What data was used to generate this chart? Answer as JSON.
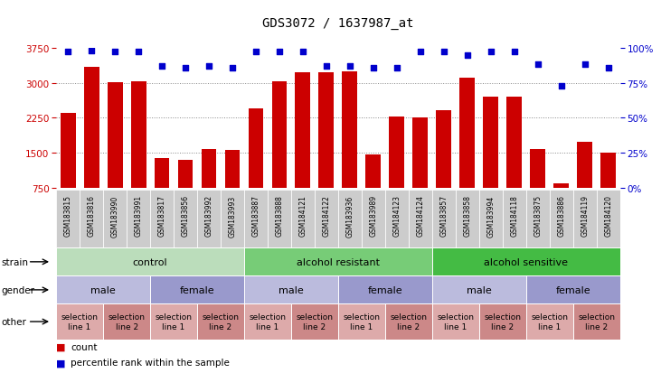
{
  "title": "GDS3072 / 1637987_at",
  "samples": [
    "GSM183815",
    "GSM183816",
    "GSM183990",
    "GSM183991",
    "GSM183817",
    "GSM183856",
    "GSM183992",
    "GSM183993",
    "GSM183887",
    "GSM183888",
    "GSM184121",
    "GSM184122",
    "GSM183936",
    "GSM183989",
    "GSM184123",
    "GSM184124",
    "GSM183857",
    "GSM183858",
    "GSM183994",
    "GSM184118",
    "GSM183875",
    "GSM183886",
    "GSM184119",
    "GSM184120"
  ],
  "counts": [
    2350,
    3350,
    3020,
    3040,
    1380,
    1360,
    1580,
    1560,
    2450,
    3040,
    3220,
    3220,
    3250,
    1470,
    2280,
    2250,
    2420,
    3100,
    2700,
    2700,
    1580,
    850,
    1740,
    1510
  ],
  "percentiles": [
    97,
    98,
    97,
    97,
    87,
    86,
    87,
    86,
    97,
    97,
    97,
    87,
    87,
    86,
    86,
    97,
    97,
    95,
    97,
    97,
    88,
    73,
    88,
    86
  ],
  "ylim_left": [
    750,
    3750
  ],
  "ylim_right": [
    0,
    100
  ],
  "yticks_left": [
    750,
    1500,
    2250,
    3000,
    3750
  ],
  "yticks_right": [
    0,
    25,
    50,
    75,
    100
  ],
  "bar_color": "#cc0000",
  "dot_color": "#0000cc",
  "grid_color": "#888888",
  "tick_bg_color": "#cccccc",
  "strain_groups": [
    {
      "label": "control",
      "start": 0,
      "end": 7,
      "color": "#bbddbb"
    },
    {
      "label": "alcohol resistant",
      "start": 8,
      "end": 15,
      "color": "#77cc77"
    },
    {
      "label": "alcohol sensitive",
      "start": 16,
      "end": 23,
      "color": "#44bb44"
    }
  ],
  "gender_groups": [
    {
      "label": "male",
      "start": 0,
      "end": 3,
      "color": "#bbbbdd"
    },
    {
      "label": "female",
      "start": 4,
      "end": 7,
      "color": "#9999cc"
    },
    {
      "label": "male",
      "start": 8,
      "end": 11,
      "color": "#bbbbdd"
    },
    {
      "label": "female",
      "start": 12,
      "end": 15,
      "color": "#9999cc"
    },
    {
      "label": "male",
      "start": 16,
      "end": 19,
      "color": "#bbbbdd"
    },
    {
      "label": "female",
      "start": 20,
      "end": 23,
      "color": "#9999cc"
    }
  ],
  "other_groups": [
    {
      "label": "selection\nline 1",
      "start": 0,
      "end": 1,
      "color": "#ddaaaa"
    },
    {
      "label": "selection\nline 2",
      "start": 2,
      "end": 3,
      "color": "#cc8888"
    },
    {
      "label": "selection\nline 1",
      "start": 4,
      "end": 5,
      "color": "#ddaaaa"
    },
    {
      "label": "selection\nline 2",
      "start": 6,
      "end": 7,
      "color": "#cc8888"
    },
    {
      "label": "selection\nline 1",
      "start": 8,
      "end": 9,
      "color": "#ddaaaa"
    },
    {
      "label": "selection\nline 2",
      "start": 10,
      "end": 11,
      "color": "#cc8888"
    },
    {
      "label": "selection\nline 1",
      "start": 12,
      "end": 13,
      "color": "#ddaaaa"
    },
    {
      "label": "selection\nline 2",
      "start": 14,
      "end": 15,
      "color": "#cc8888"
    },
    {
      "label": "selection\nline 1",
      "start": 16,
      "end": 17,
      "color": "#ddaaaa"
    },
    {
      "label": "selection\nline 2",
      "start": 18,
      "end": 19,
      "color": "#cc8888"
    },
    {
      "label": "selection\nline 1",
      "start": 20,
      "end": 21,
      "color": "#ddaaaa"
    },
    {
      "label": "selection\nline 2",
      "start": 22,
      "end": 23,
      "color": "#cc8888"
    }
  ],
  "row_labels": [
    "strain",
    "gender",
    "other"
  ],
  "fig_width": 7.31,
  "fig_height": 4.14,
  "dpi": 100
}
